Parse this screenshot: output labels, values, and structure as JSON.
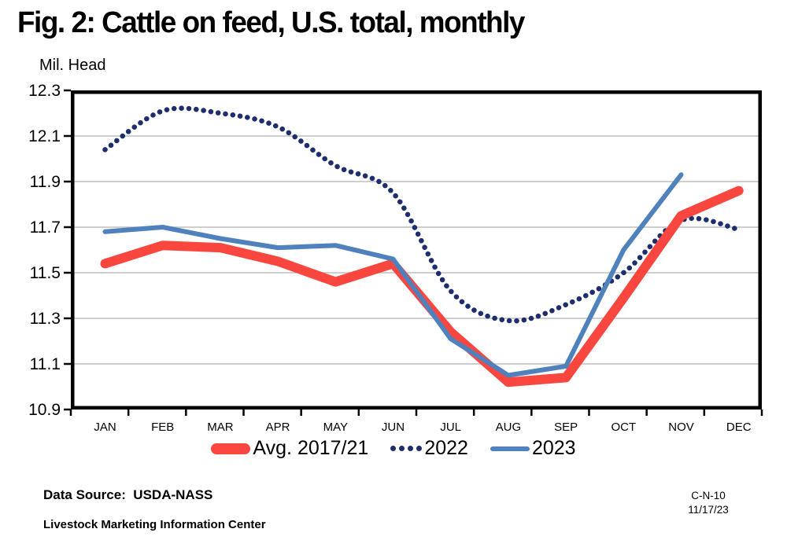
{
  "title": "Fig. 2: Cattle on feed, U.S. total, monthly",
  "y_axis_unit": "Mil. Head",
  "footer": {
    "data_source": "Data Source:  USDA-NASS",
    "organization": "Livestock Marketing Information Center",
    "chart_code": "C-N-10",
    "date": "11/17/23"
  },
  "colors": {
    "avg_line": "#F9463F",
    "line_2022": "#1E2D6E",
    "line_2023": "#4F81BD",
    "gridline": "#BFBFBF",
    "axis": "#000000",
    "background": "#FFFFFF"
  },
  "chart_data": {
    "type": "line",
    "title": "Fig. 2: Cattle on feed, U.S. total, monthly",
    "ylabel": "Mil. Head",
    "xlabel": "",
    "categories": [
      "JAN",
      "FEB",
      "MAR",
      "APR",
      "MAY",
      "JUN",
      "JUL",
      "AUG",
      "SEP",
      "OCT",
      "NOV",
      "DEC"
    ],
    "ylim": [
      10.9,
      12.3
    ],
    "ytick_step": 0.2,
    "yticks": [
      "12.3",
      "12.1",
      "11.9",
      "11.7",
      "11.5",
      "11.3",
      "11.1",
      "10.9"
    ],
    "grid": true,
    "legend_position": "bottom",
    "series": [
      {
        "name": "Avg. 2017/21",
        "color": "#F9463F",
        "style": "solid-thick",
        "smooth": false,
        "values": [
          11.54,
          11.62,
          11.61,
          11.55,
          11.46,
          11.54,
          11.24,
          11.02,
          11.04,
          11.39,
          11.75,
          11.86
        ]
      },
      {
        "name": "2022",
        "color": "#1E2D6E",
        "style": "dotted",
        "smooth": true,
        "values": [
          12.04,
          12.21,
          12.2,
          12.14,
          11.97,
          11.85,
          11.42,
          11.29,
          11.36,
          11.5,
          11.73,
          11.69
        ]
      },
      {
        "name": "2023",
        "color": "#4F81BD",
        "style": "solid",
        "smooth": false,
        "values": [
          11.68,
          11.7,
          11.65,
          11.61,
          11.62,
          11.56,
          11.21,
          11.05,
          11.09,
          11.6,
          11.93,
          null
        ]
      }
    ]
  }
}
